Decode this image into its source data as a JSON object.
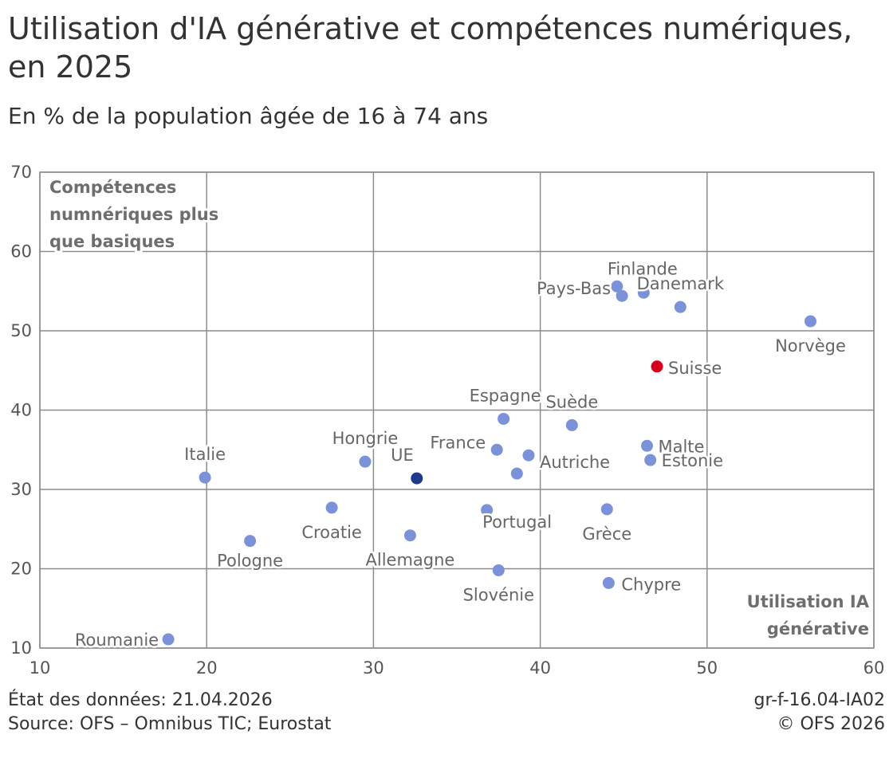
{
  "header": {
    "title": "Utilisation d'IA générative et compétences numériques, en 2025",
    "subtitle": "En % de la population âgée de 16 à 74 ans"
  },
  "footer": {
    "data_state": "État des données: 21.04.2026",
    "source": "Source: OFS – Omnibus TIC; Eurostat",
    "code": "gr-f-16.04-IA02",
    "copyright": "© OFS 2026"
  },
  "chart_data": {
    "type": "scatter",
    "title": "Utilisation d'IA générative et compétences numériques, en 2025",
    "subtitle": "En % de la population âgée de 16 à 74 ans",
    "xlabel": "Utilisation IA générative",
    "ylabel": "Compétences numnériques plus que basiques",
    "xlim": [
      10,
      60
    ],
    "ylim": [
      10,
      70
    ],
    "xticks": [
      10,
      20,
      30,
      40,
      50,
      60
    ],
    "yticks": [
      10,
      20,
      30,
      40,
      50,
      60,
      70
    ],
    "grid": true,
    "colors": {
      "default": "#7b92d9",
      "highlight": "#d6001c",
      "eu": "#1f3a8a",
      "grid": "#8c8c8c",
      "label": "#6e6e6e"
    },
    "points": [
      {
        "label": "Roumanie",
        "x": 17.7,
        "y": 11.1,
        "color": "default"
      },
      {
        "label": "Italie",
        "x": 19.9,
        "y": 31.5,
        "color": "default"
      },
      {
        "label": "Pologne",
        "x": 22.6,
        "y": 23.5,
        "color": "default"
      },
      {
        "label": "Croatie",
        "x": 27.5,
        "y": 27.7,
        "color": "default"
      },
      {
        "label": "Hongrie",
        "x": 29.5,
        "y": 33.5,
        "color": "default"
      },
      {
        "label": "Allemagne",
        "x": 32.2,
        "y": 24.2,
        "color": "default"
      },
      {
        "label": "UE",
        "x": 32.6,
        "y": 31.4,
        "color": "eu"
      },
      {
        "label": "Portugal",
        "x": 36.8,
        "y": 27.4,
        "color": "default"
      },
      {
        "label": "France",
        "x": 37.4,
        "y": 35.0,
        "color": "default"
      },
      {
        "label": "Slovénie",
        "x": 37.5,
        "y": 19.8,
        "color": "default"
      },
      {
        "label": "Espagne",
        "x": 37.8,
        "y": 38.9,
        "color": "default"
      },
      {
        "label": "",
        "x": 38.6,
        "y": 32.0,
        "color": "default"
      },
      {
        "label": "Autriche",
        "x": 39.3,
        "y": 34.3,
        "color": "default"
      },
      {
        "label": "Suède",
        "x": 41.9,
        "y": 38.1,
        "color": "default"
      },
      {
        "label": "Grèce",
        "x": 44.0,
        "y": 27.5,
        "color": "default"
      },
      {
        "label": "Chypre",
        "x": 44.1,
        "y": 18.2,
        "color": "default"
      },
      {
        "label": "Finlande",
        "x": 44.6,
        "y": 55.6,
        "color": "default"
      },
      {
        "label": "Pays-Bas",
        "x": 44.9,
        "y": 54.4,
        "color": "default"
      },
      {
        "label": "",
        "x": 46.2,
        "y": 54.8,
        "color": "default"
      },
      {
        "label": "Malte",
        "x": 46.4,
        "y": 35.5,
        "color": "default"
      },
      {
        "label": "Estonie",
        "x": 46.6,
        "y": 33.7,
        "color": "default"
      },
      {
        "label": "Suisse",
        "x": 47.0,
        "y": 45.5,
        "color": "highlight"
      },
      {
        "label": "Danemark",
        "x": 48.4,
        "y": 53.0,
        "color": "default"
      },
      {
        "label": "Norvège",
        "x": 56.2,
        "y": 51.2,
        "color": "default"
      }
    ]
  }
}
